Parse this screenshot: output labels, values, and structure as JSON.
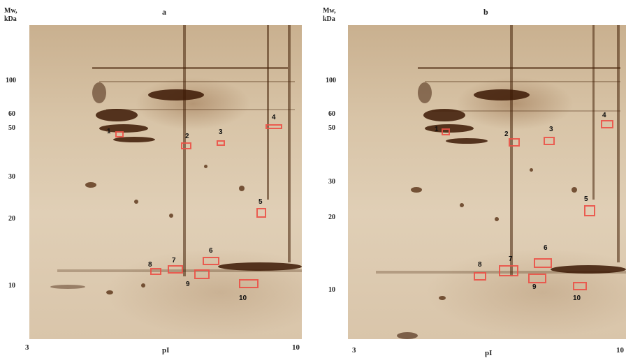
{
  "figure": {
    "axis": {
      "mw_label": "Mw,\nkDa",
      "x_label": "pI",
      "pi_min": "3",
      "pi_max": "10",
      "mw_ticks": [
        "100",
        "60",
        "50",
        "30",
        "20",
        "10"
      ]
    },
    "panels": [
      {
        "letter": "a",
        "spots": [
          {
            "label": "1"
          },
          {
            "label": "2"
          },
          {
            "label": "3"
          },
          {
            "label": "4"
          },
          {
            "label": "5"
          },
          {
            "label": "6"
          },
          {
            "label": "7"
          },
          {
            "label": "8"
          },
          {
            "label": "9"
          },
          {
            "label": "10"
          }
        ]
      },
      {
        "letter": "b",
        "spots": [
          {
            "label": "1"
          },
          {
            "label": "2"
          },
          {
            "label": "3"
          },
          {
            "label": "4"
          },
          {
            "label": "5"
          },
          {
            "label": "6"
          },
          {
            "label": "7"
          },
          {
            "label": "8"
          },
          {
            "label": "9"
          },
          {
            "label": "10"
          }
        ]
      }
    ],
    "colors": {
      "box": "#eb5046",
      "gel_background": "#d8c4a7",
      "stain": "#3c1905"
    }
  }
}
